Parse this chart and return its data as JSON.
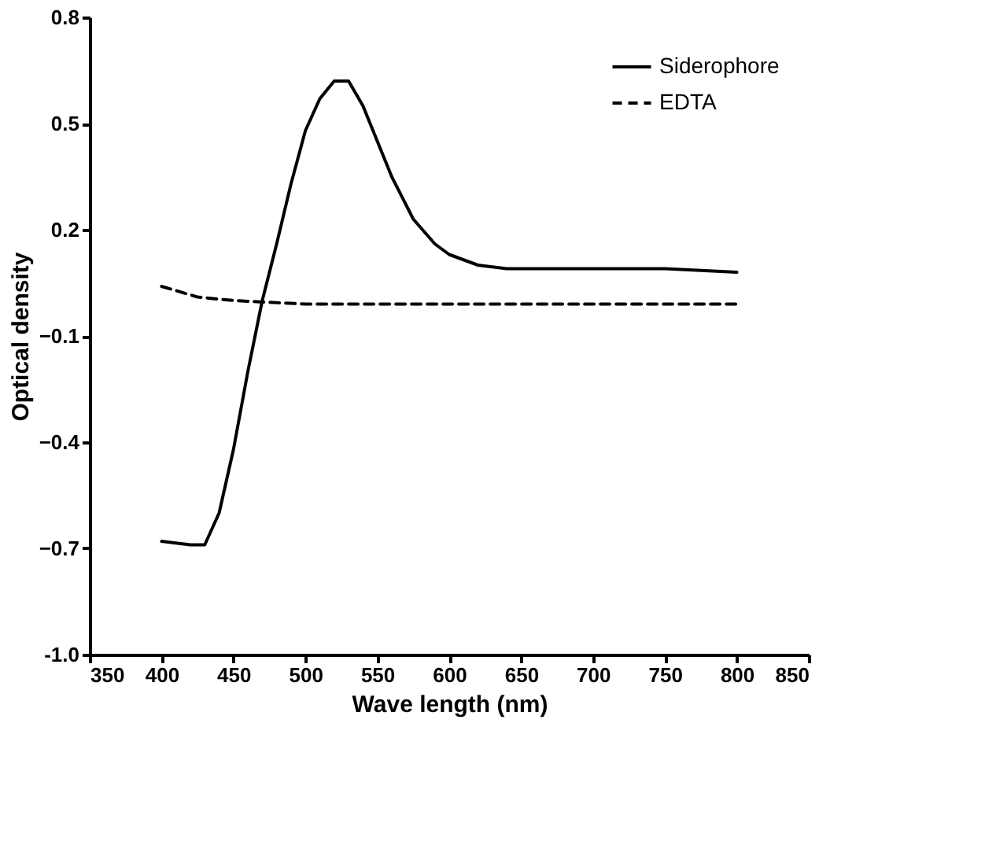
{
  "chart_data": {
    "type": "line",
    "xlabel": "Wave length (nm)",
    "ylabel": "Optical density",
    "xlim": [
      350,
      850
    ],
    "xticks": [
      350,
      400,
      450,
      500,
      550,
      600,
      650,
      700,
      750,
      800,
      850
    ],
    "ylim": [
      -1.0,
      0.8
    ],
    "yticks": [
      {
        "value": -1.0,
        "label": "-1.0"
      },
      -0.7,
      -0.4,
      -0.1,
      0.2,
      0.5,
      0.8
    ],
    "grid": false,
    "legend": "top right",
    "marker": "none",
    "series": [
      {
        "name": "Siderophore",
        "color": "#000000",
        "line_style": "solid",
        "x": [
          400,
          420,
          430,
          440,
          450,
          460,
          470,
          480,
          490,
          500,
          510,
          520,
          530,
          540,
          550,
          560,
          575,
          590,
          600,
          620,
          640,
          700,
          750,
          800
        ],
        "values": [
          -0.68,
          -0.69,
          -0.69,
          -0.6,
          -0.42,
          -0.2,
          0.0,
          0.16,
          0.33,
          0.48,
          0.57,
          0.62,
          0.62,
          0.55,
          0.45,
          0.35,
          0.23,
          0.16,
          0.13,
          0.1,
          0.09,
          0.09,
          0.09,
          0.08
        ]
      },
      {
        "name": "EDTA",
        "color": "#000000",
        "line_style": "dashed",
        "x": [
          400,
          425,
          450,
          500,
          600,
          700,
          800
        ],
        "values": [
          0.04,
          0.01,
          0.0,
          -0.01,
          -0.01,
          -0.01,
          -0.01
        ]
      }
    ]
  }
}
